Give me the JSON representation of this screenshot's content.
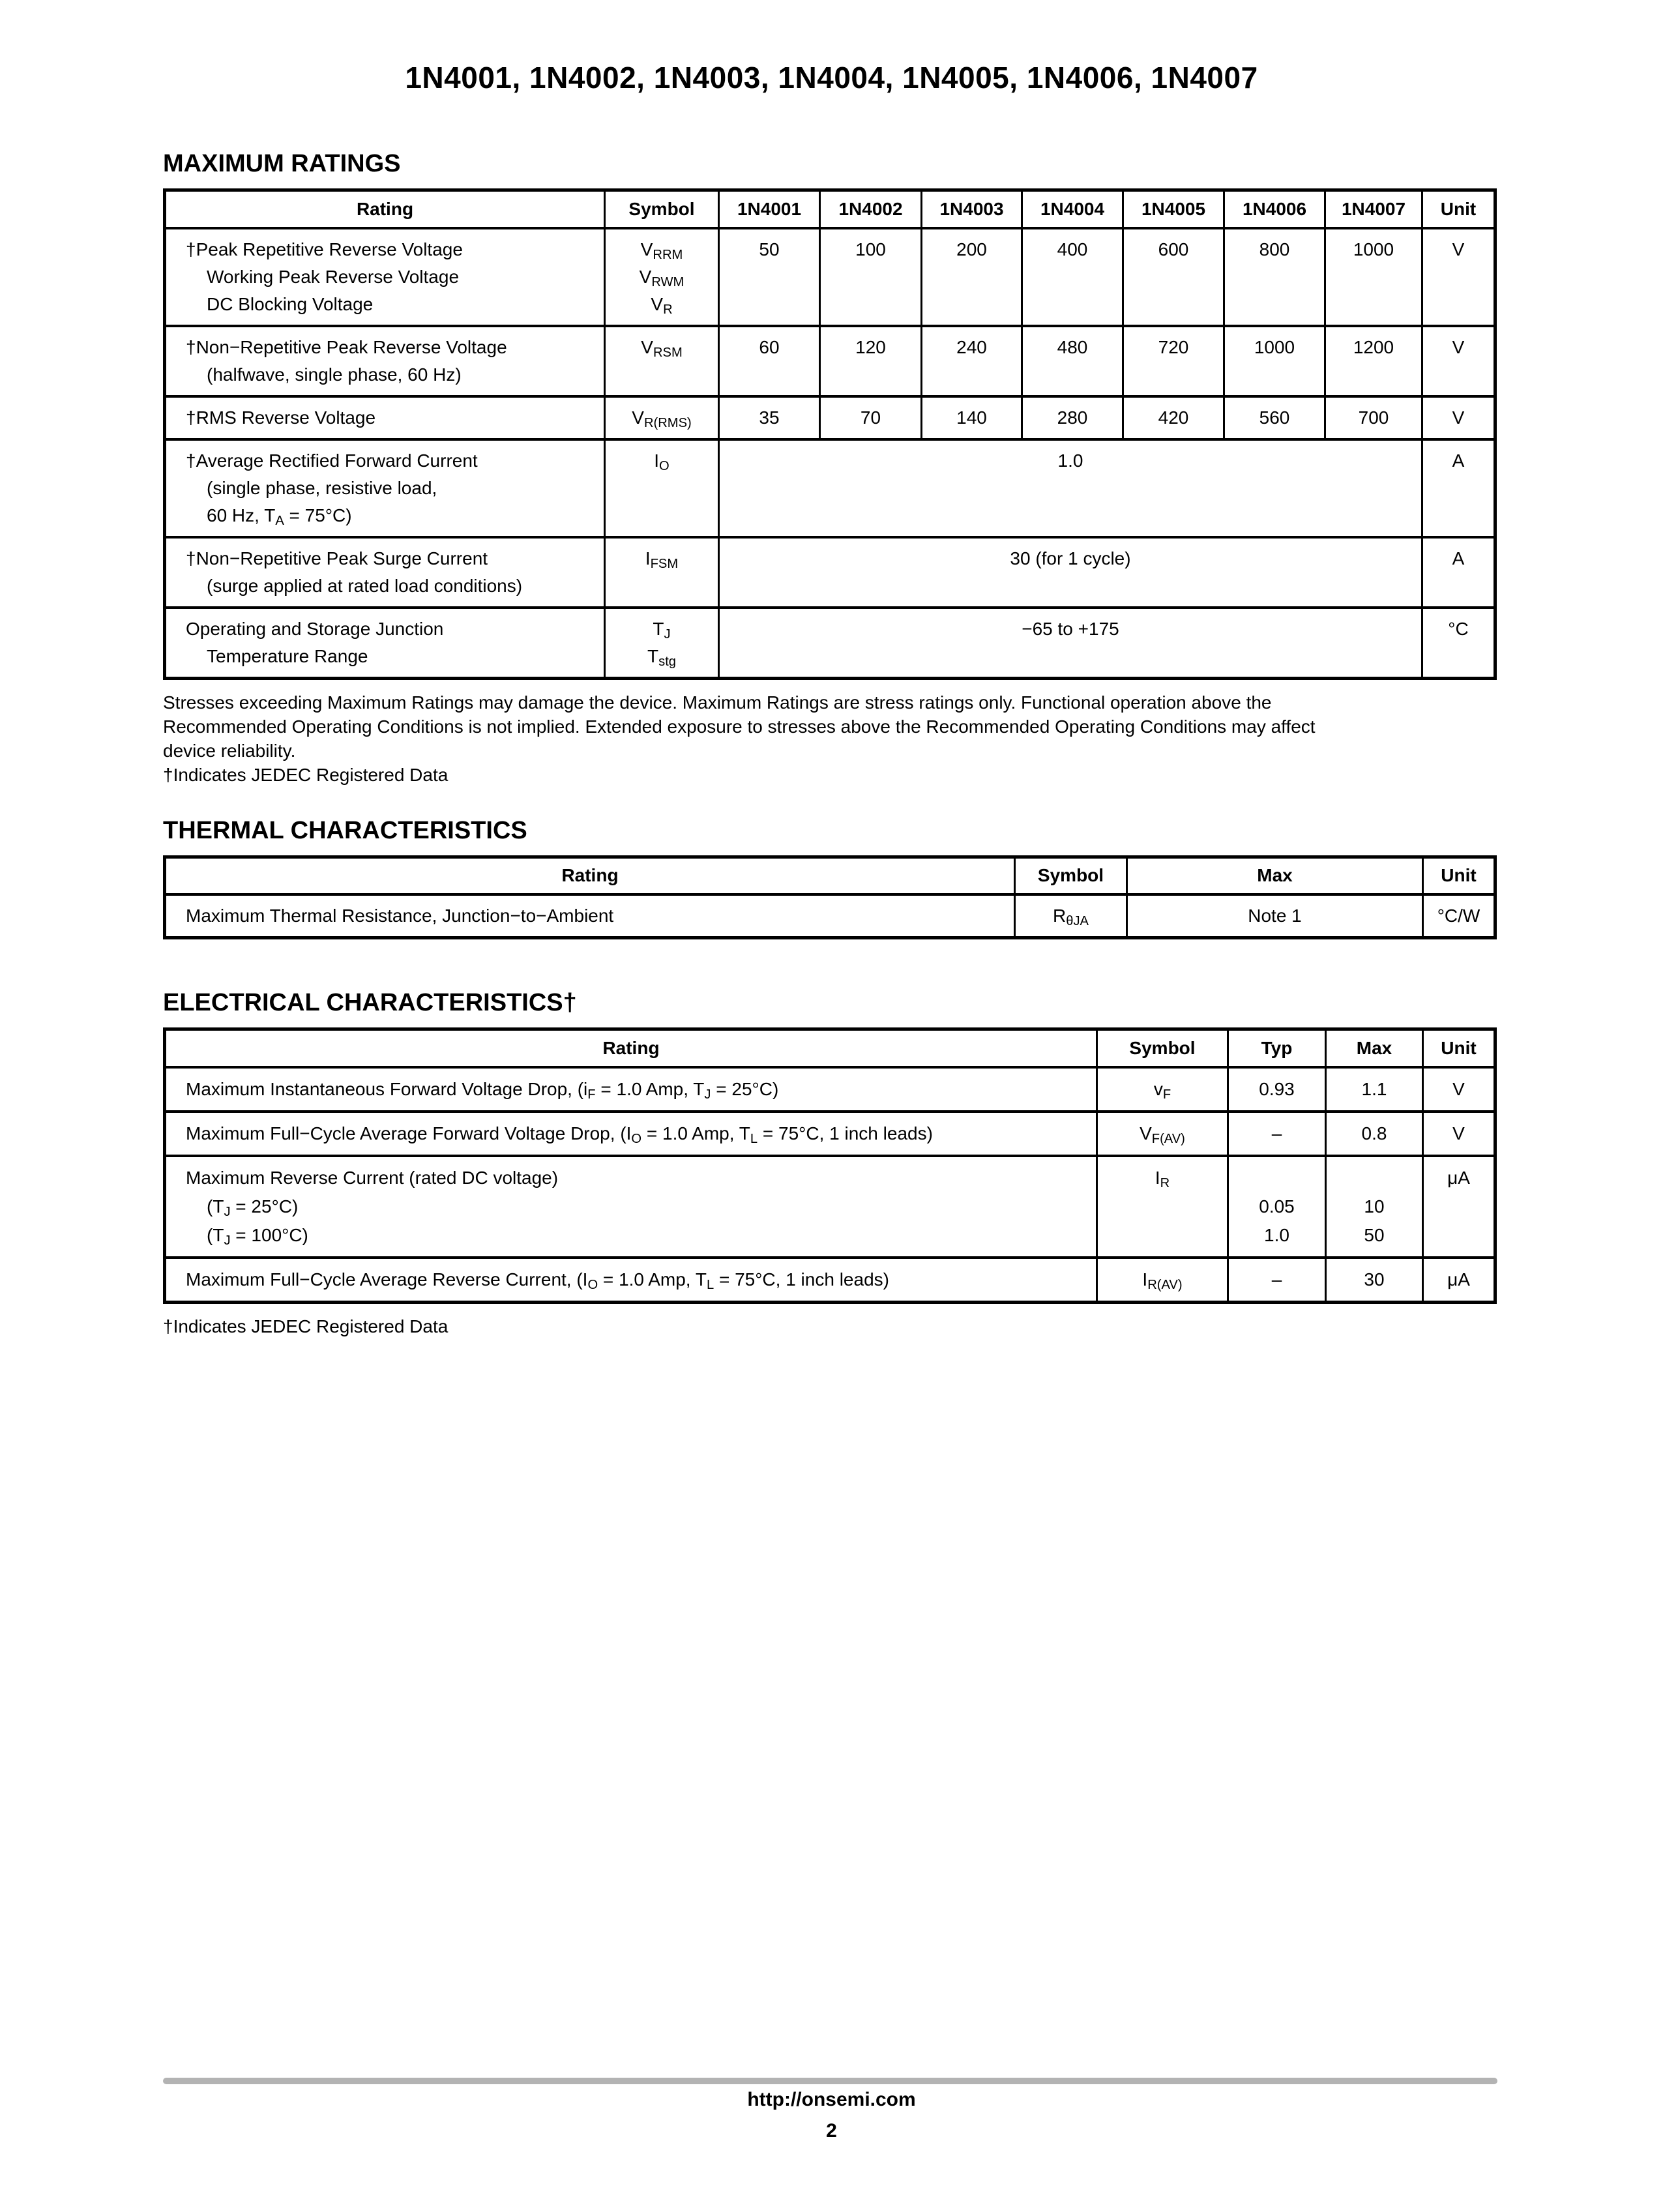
{
  "page": {
    "title": "1N4001, 1N4002, 1N4003, 1N4004, 1N4005, 1N4006, 1N4007",
    "footer": {
      "url": "http://onsemi.com",
      "page_number": "2"
    }
  },
  "max_ratings": {
    "heading": "MAXIMUM RATINGS",
    "columns": [
      "Rating",
      "Symbol",
      "1N4001",
      "1N4002",
      "1N4003",
      "1N4004",
      "1N4005",
      "1N4006",
      "1N4007",
      "Unit"
    ],
    "rows": [
      {
        "rating_lines": [
          [
            [
              "t",
              "†Peak Repetitive Reverse Voltage"
            ]
          ],
          [
            [
              "t",
              "Working Peak Reverse Voltage"
            ]
          ],
          [
            [
              "t",
              "DC Blocking Voltage"
            ]
          ]
        ],
        "symbols": [
          [
            [
              "t",
              "V"
            ],
            [
              "s",
              "RRM"
            ]
          ],
          [
            [
              "t",
              "V"
            ],
            [
              "s",
              "RWM"
            ]
          ],
          [
            [
              "t",
              "V"
            ],
            [
              "s",
              "R"
            ]
          ]
        ],
        "values": [
          "50",
          "100",
          "200",
          "400",
          "600",
          "800",
          "1000"
        ],
        "unit": "V"
      },
      {
        "rating_lines": [
          [
            [
              "t",
              "†Non−Repetitive Peak Reverse Voltage"
            ]
          ],
          [
            [
              "t",
              "(halfwave, single phase, 60 Hz)"
            ]
          ]
        ],
        "symbols": [
          [
            [
              "t",
              "V"
            ],
            [
              "s",
              "RSM"
            ]
          ]
        ],
        "values": [
          "60",
          "120",
          "240",
          "480",
          "720",
          "1000",
          "1200"
        ],
        "unit": "V"
      },
      {
        "rating_lines": [
          [
            [
              "t",
              "†RMS Reverse Voltage"
            ]
          ]
        ],
        "symbols": [
          [
            [
              "t",
              "V"
            ],
            [
              "s",
              "R(RMS)"
            ]
          ]
        ],
        "values": [
          "35",
          "70",
          "140",
          "280",
          "420",
          "560",
          "700"
        ],
        "unit": "V"
      },
      {
        "rating_lines": [
          [
            [
              "t",
              "†Average Rectified Forward Current"
            ]
          ],
          [
            [
              "t",
              "(single phase, resistive load,"
            ]
          ],
          [
            [
              "t",
              "60 Hz, T"
            ],
            [
              "s",
              "A"
            ],
            [
              "t",
              " = 75°C)"
            ]
          ]
        ],
        "symbols": [
          [
            [
              "t",
              "I"
            ],
            [
              "s",
              "O"
            ]
          ]
        ],
        "merged": "1.0",
        "unit": "A"
      },
      {
        "rating_lines": [
          [
            [
              "t",
              "†Non−Repetitive Peak Surge Current"
            ]
          ],
          [
            [
              "t",
              "(surge applied at rated load conditions)"
            ]
          ]
        ],
        "symbols": [
          [
            [
              "t",
              "I"
            ],
            [
              "s",
              "FSM"
            ]
          ]
        ],
        "merged": "30 (for 1 cycle)",
        "unit": "A"
      },
      {
        "rating_lines": [
          [
            [
              "t",
              "Operating and Storage Junction"
            ]
          ],
          [
            [
              "t",
              "Temperature Range"
            ]
          ]
        ],
        "symbols": [
          [
            [
              "t",
              "T"
            ],
            [
              "s",
              "J"
            ]
          ],
          [
            [
              "t",
              "T"
            ],
            [
              "s",
              "stg"
            ]
          ]
        ],
        "merged": "−65 to +175",
        "unit": "°C"
      }
    ],
    "note_lines": [
      "Stresses exceeding Maximum Ratings may damage the device. Maximum Ratings are stress ratings only. Functional operation above the",
      "Recommended Operating Conditions is not implied. Extended exposure to stresses above the Recommended Operating Conditions may affect",
      "device reliability."
    ],
    "note_jedec": "†Indicates JEDEC Registered Data"
  },
  "thermal": {
    "heading": "THERMAL CHARACTERISTICS",
    "columns": [
      "Rating",
      "Symbol",
      "Max",
      "Unit"
    ],
    "rows": [
      {
        "rating": [
          [
            "t",
            "Maximum Thermal Resistance, Junction−to−Ambient"
          ]
        ],
        "symbol": [
          [
            "t",
            "R"
          ],
          [
            "s",
            "θJA"
          ]
        ],
        "max": "Note 1",
        "unit": "°C/W"
      }
    ]
  },
  "electrical": {
    "heading": "ELECTRICAL CHARACTERISTICS†",
    "columns": [
      "Rating",
      "Symbol",
      "Typ",
      "Max",
      "Unit"
    ],
    "rows": [
      {
        "rating_lines": [
          [
            [
              "t",
              "Maximum Instantaneous Forward Voltage Drop, (i"
            ],
            [
              "s",
              "F"
            ],
            [
              "t",
              " = 1.0 Amp, T"
            ],
            [
              "s",
              "J"
            ],
            [
              "t",
              " = 25°C)"
            ]
          ]
        ],
        "symbol": [
          [
            "t",
            "v"
          ],
          [
            "s",
            "F"
          ]
        ],
        "typ": "0.93",
        "max": "1.1",
        "unit": "V"
      },
      {
        "rating_lines": [
          [
            [
              "t",
              "Maximum Full−Cycle Average Forward Voltage Drop, (I"
            ],
            [
              "s",
              "O"
            ],
            [
              "t",
              " = 1.0 Amp, T"
            ],
            [
              "s",
              "L"
            ],
            [
              "t",
              " = 75°C, 1 inch leads)"
            ]
          ]
        ],
        "symbol": [
          [
            "t",
            "V"
          ],
          [
            "s",
            "F(AV)"
          ]
        ],
        "typ": "–",
        "max": "0.8",
        "unit": "V"
      },
      {
        "rating_lines": [
          [
            [
              "t",
              "Maximum Reverse Current (rated DC voltage)"
            ]
          ],
          [
            [
              "t",
              "(T"
            ],
            [
              "s",
              "J"
            ],
            [
              "t",
              " = 25°C)"
            ]
          ],
          [
            [
              "t",
              "(T"
            ],
            [
              "s",
              "J"
            ],
            [
              "t",
              " = 100°C)"
            ]
          ]
        ],
        "symbol": [
          [
            "t",
            "I"
          ],
          [
            "s",
            "R"
          ]
        ],
        "typ_lines": [
          "",
          "0.05",
          "1.0"
        ],
        "max_lines": [
          "",
          "10",
          "50"
        ],
        "unit": "μA"
      },
      {
        "rating_lines": [
          [
            [
              "t",
              "Maximum Full−Cycle Average Reverse Current, (I"
            ],
            [
              "s",
              "O"
            ],
            [
              "t",
              " = 1.0 Amp, T"
            ],
            [
              "s",
              "L"
            ],
            [
              "t",
              " = 75°C, 1 inch leads)"
            ]
          ]
        ],
        "symbol": [
          [
            "t",
            "I"
          ],
          [
            "s",
            "R(AV)"
          ]
        ],
        "typ": "–",
        "max": "30",
        "unit": "μA"
      }
    ],
    "note_jedec": "†Indicates JEDEC Registered Data"
  }
}
